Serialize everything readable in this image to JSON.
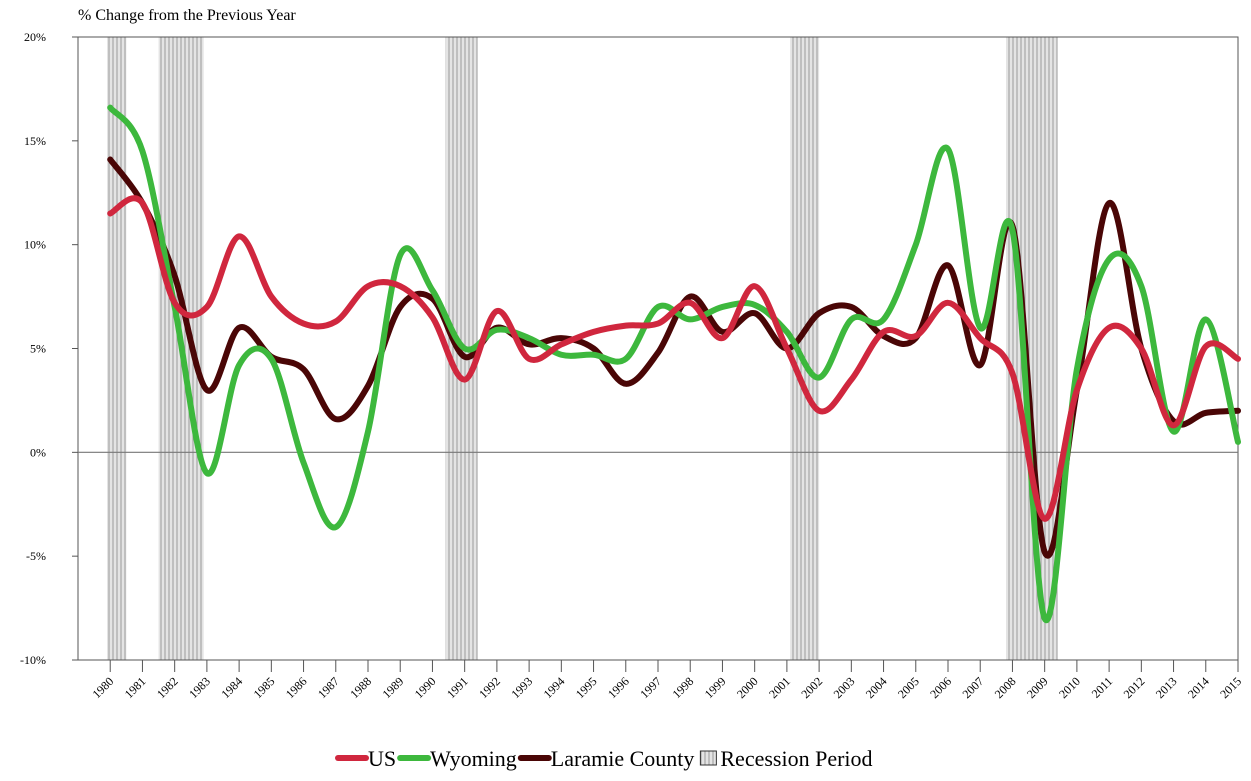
{
  "chart_data": {
    "type": "line",
    "y_axis_label": "% Change from the Previous Year",
    "x": [
      1980,
      1981,
      1982,
      1983,
      1984,
      1985,
      1986,
      1987,
      1988,
      1989,
      1990,
      1991,
      1992,
      1993,
      1994,
      1995,
      1996,
      1997,
      1998,
      1999,
      2000,
      2001,
      2002,
      2003,
      2004,
      2005,
      2006,
      2007,
      2008,
      2009,
      2010,
      2011,
      2012,
      2013,
      2014,
      2015
    ],
    "xlim": [
      1979,
      2015
    ],
    "xticks": [
      1980,
      1981,
      1982,
      1983,
      1984,
      1985,
      1986,
      1987,
      1988,
      1989,
      1990,
      1991,
      1992,
      1993,
      1994,
      1995,
      1996,
      1997,
      1998,
      1999,
      2000,
      2001,
      2002,
      2003,
      2004,
      2005,
      2006,
      2007,
      2008,
      2009,
      2010,
      2011,
      2012,
      2013,
      2014,
      2015
    ],
    "ylim": [
      -10,
      20
    ],
    "yticks": [
      {
        "value": -10,
        "label": "-10%"
      },
      {
        "value": -5,
        "label": "-5%"
      },
      {
        "value": 0,
        "label": "0%"
      },
      {
        "value": 5,
        "label": "5%"
      },
      {
        "value": 10,
        "label": "10%"
      },
      {
        "value": 15,
        "label": "15%"
      },
      {
        "value": 20,
        "label": "20%"
      }
    ],
    "series": [
      {
        "name": "US",
        "color": "#d0273e",
        "values": [
          11.5,
          12,
          7.2,
          7,
          10.4,
          7.5,
          6.2,
          6.3,
          8,
          8,
          6.5,
          3.5,
          6.8,
          4.5,
          5.2,
          5.8,
          6.1,
          6.2,
          7.2,
          5.5,
          8,
          5,
          2,
          3.5,
          5.8,
          5.6,
          7.2,
          5.5,
          3.8,
          -3.2,
          3,
          6,
          5,
          1.3,
          5.1,
          4.5
        ]
      },
      {
        "name": "Wyoming",
        "color": "#3db83d",
        "values": [
          16.6,
          14.5,
          7,
          -1,
          4.2,
          4.5,
          -0.5,
          -3.6,
          1,
          9.5,
          7.8,
          5,
          5.9,
          5.5,
          4.7,
          4.7,
          4.5,
          7,
          6.4,
          7,
          7.1,
          5.8,
          3.6,
          6.4,
          6.4,
          10,
          14.6,
          6,
          10.7,
          -8,
          4,
          9.3,
          8,
          1,
          6.4,
          0.5
        ]
      },
      {
        "name": "Laramie County",
        "color": "#4a0606",
        "values": [
          14.1,
          12,
          8.5,
          3,
          6,
          4.6,
          4,
          1.6,
          3.2,
          7,
          7.4,
          4.6,
          6,
          5.2,
          5.5,
          5,
          3.3,
          4.8,
          7.5,
          5.8,
          6.7,
          5,
          6.7,
          7,
          5.6,
          5.5,
          9,
          4.2,
          10.9,
          -4.8,
          3,
          12,
          5,
          1.5,
          1.9,
          2
        ]
      }
    ],
    "recessions": {
      "name": "Recession Period",
      "ranges": [
        [
          1979.9,
          1980.5
        ],
        [
          1981.5,
          1982.9
        ],
        [
          1990.4,
          1991.4
        ],
        [
          2001.1,
          2002
        ],
        [
          2007.8,
          2009.4
        ]
      ]
    }
  }
}
